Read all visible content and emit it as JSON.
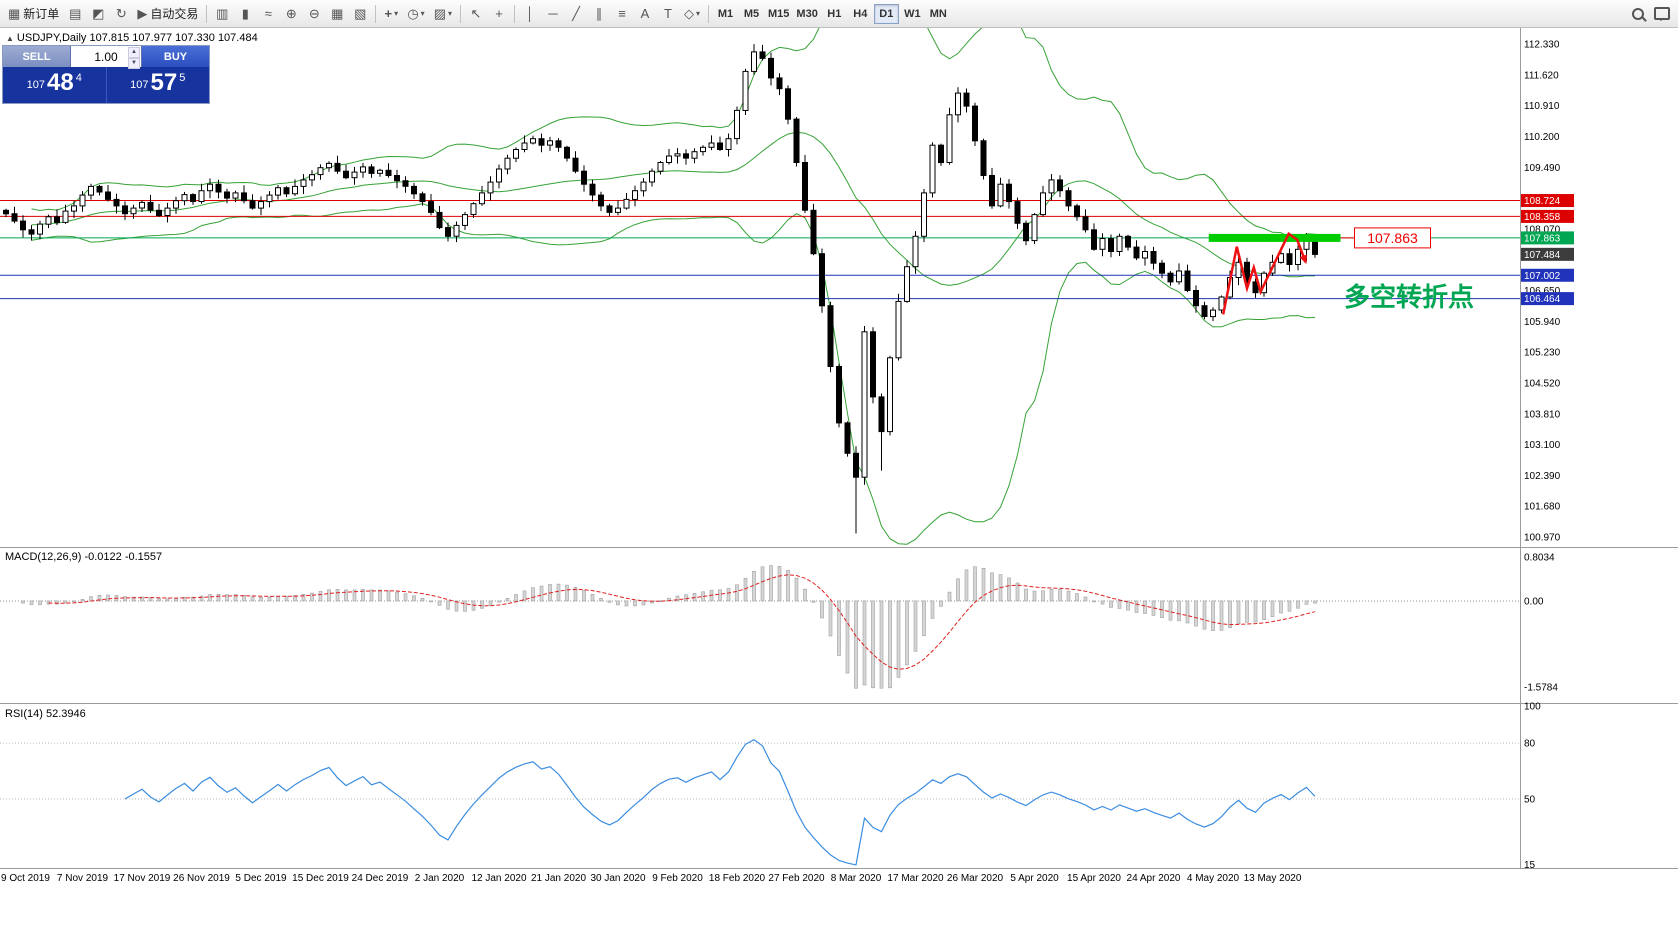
{
  "icons": {
    "chart": "▦",
    "folder": "▤",
    "navigator": "◩",
    "refresh": "↻",
    "play": "▶",
    "bars": "▥",
    "candles": "▮",
    "linechart": "≈",
    "zoomin": "⊕",
    "zoomout": "⊖",
    "tile": "▦",
    "cascade": "▧",
    "indicators": "+",
    "clock": "◷",
    "template": "▨",
    "dropdown": "▾",
    "cursor": "↖",
    "crosshair": "+",
    "vline": "│",
    "hline": "─",
    "trendline": "╱",
    "channel": "∥",
    "fibo": "≡",
    "text": "A",
    "label": "T",
    "shapes": "◇",
    "collapse": "▲"
  },
  "toolbar": {
    "new_order": "新订单",
    "autotrading": "自动交易",
    "timeframes": [
      "M1",
      "M5",
      "M15",
      "M30",
      "H1",
      "H4",
      "D1",
      "W1",
      "MN"
    ],
    "active_timeframe": "D1"
  },
  "trade_panel": {
    "sell_label": "SELL",
    "buy_label": "BUY",
    "volume": "1.00",
    "sell": {
      "prefix": "107",
      "big": "48",
      "sup": "4"
    },
    "buy": {
      "prefix": "107",
      "big": "57",
      "sup": "5"
    }
  },
  "chart_data": {
    "type": "candlestick",
    "title": "USDJPY,Daily",
    "ohlc_text": "107.815 107.977 107.330 107.484",
    "first_open": 108.5,
    "closes": [
      108.42,
      108.25,
      108.05,
      107.95,
      108.18,
      108.35,
      108.22,
      108.48,
      108.6,
      108.85,
      109.05,
      108.92,
      108.75,
      108.6,
      108.42,
      108.55,
      108.68,
      108.5,
      108.38,
      108.55,
      108.72,
      108.86,
      108.7,
      108.95,
      109.1,
      108.92,
      108.78,
      108.9,
      108.72,
      108.55,
      108.7,
      108.85,
      109.02,
      108.88,
      109.05,
      109.2,
      109.32,
      109.48,
      109.58,
      109.4,
      109.25,
      109.38,
      109.5,
      109.35,
      109.42,
      109.3,
      109.18,
      109.05,
      108.88,
      108.7,
      108.45,
      108.1,
      107.9,
      108.15,
      108.4,
      108.65,
      108.9,
      109.15,
      109.45,
      109.7,
      109.9,
      110.05,
      110.15,
      110.0,
      110.1,
      109.95,
      109.7,
      109.4,
      109.1,
      108.85,
      108.6,
      108.45,
      108.55,
      108.75,
      108.95,
      109.15,
      109.4,
      109.6,
      109.75,
      109.8,
      109.7,
      109.85,
      109.95,
      110.05,
      109.9,
      110.15,
      110.8,
      111.7,
      112.15,
      112.0,
      111.55,
      111.3,
      110.6,
      109.6,
      108.5,
      107.5,
      106.3,
      104.9,
      103.6,
      102.9,
      102.35,
      105.7,
      104.2,
      103.4,
      105.1,
      106.4,
      107.2,
      107.9,
      108.9,
      110.0,
      109.6,
      110.7,
      111.2,
      110.9,
      110.1,
      109.3,
      108.6,
      109.1,
      108.7,
      108.2,
      107.8,
      108.4,
      108.9,
      109.2,
      108.95,
      108.6,
      108.35,
      108.05,
      107.6,
      107.85,
      107.55,
      107.9,
      107.65,
      107.4,
      107.55,
      107.28,
      107.05,
      106.85,
      107.1,
      106.65,
      106.3,
      106.05,
      106.2,
      106.5,
      106.95,
      107.3,
      106.85,
      106.6,
      107.05,
      107.3,
      107.5,
      107.25,
      107.6,
      107.9,
      107.484
    ],
    "wick_lows": {
      "52": 107.78,
      "100": 101.05,
      "103": 102.5,
      "141": 105.99,
      "153": 107.33
    },
    "wick_highs": {
      "62": 110.22,
      "88": 112.33,
      "153": 107.977
    },
    "x_labels": [
      "9 Oct 2019",
      "7 Nov 2019",
      "17 Nov 2019",
      "26 Nov 2019",
      "5 Dec 2019",
      "15 Dec 2019",
      "24 Dec 2019",
      "2 Jan 2020",
      "12 Jan 2020",
      "21 Jan 2020",
      "30 Jan 2020",
      "9 Feb 2020",
      "18 Feb 2020",
      "27 Feb 2020",
      "8 Mar 2020",
      "17 Mar 2020",
      "26 Mar 2020",
      "5 Apr 2020",
      "15 Apr 2020",
      "24 Apr 2020",
      "4 May 2020",
      "13 May 2020"
    ],
    "x_label_indices": [
      0,
      9,
      16,
      23,
      30,
      37,
      44,
      51,
      58,
      65,
      72,
      79,
      86,
      93,
      100,
      107,
      114,
      121,
      128,
      135,
      142,
      149
    ],
    "ylim": [
      100.74,
      112.7
    ],
    "y_axis_labels": [
      "112.330",
      "111.620",
      "110.910",
      "110.200",
      "109.490",
      "108.070",
      "106.650",
      "105.940",
      "105.230",
      "104.520",
      "103.810",
      "103.100",
      "102.390",
      "101.680",
      "100.970"
    ],
    "hlines": [
      {
        "price": "108.724",
        "color": "#dd0000"
      },
      {
        "price": "108.358",
        "color": "#dd0000"
      },
      {
        "price": "107.863",
        "color": "#00a651"
      },
      {
        "price": "107.002",
        "color": "#2233bb"
      },
      {
        "price": "106.464",
        "color": "#2233bb"
      }
    ],
    "current_price": "107.484",
    "bollinger": {
      "period": 20,
      "deviation": 2,
      "color": "#36a236"
    },
    "macd": {
      "label": "MACD(12,26,9) -0.0122 -0.1557",
      "fast": 12,
      "slow": 26,
      "signal": 9,
      "ylim": [
        -1.87,
        0.97
      ],
      "y_labels": [
        "0.8034",
        "0.00",
        "-1.5784"
      ],
      "bar_color": "#d6d6d6",
      "bar_stroke": "#9e9e9e",
      "signal_color": "#e02020"
    },
    "rsi": {
      "label": "RSI(14) 52.3946",
      "period": 14,
      "ylim": [
        13,
        101
      ],
      "y_labels": [
        "100",
        "80",
        "50",
        "15"
      ],
      "levels": [
        80,
        50
      ],
      "color": "#3b8de0"
    },
    "annotations": {
      "highlight_bar": {
        "price": 107.863,
        "start_index": 141.5,
        "end_index": 157,
        "color": "#00cc00"
      },
      "callout": {
        "text": "107.863",
        "color": "#ee0000"
      },
      "zigzag": {
        "color": "#ee1111",
        "points": [
          [
            143.2,
            106.1
          ],
          [
            144.8,
            107.66
          ],
          [
            146.0,
            106.7
          ],
          [
            146.8,
            107.18
          ],
          [
            147.6,
            106.62
          ],
          [
            150.9,
            107.96
          ],
          [
            151.9,
            107.82
          ],
          [
            152.9,
            107.3
          ]
        ]
      },
      "cn_note": {
        "text": "多空转折点",
        "color": "#00a651"
      }
    }
  }
}
